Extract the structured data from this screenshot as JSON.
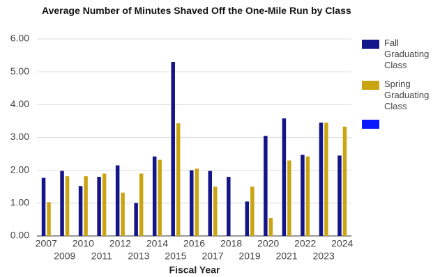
{
  "chart_data": {
    "type": "bar",
    "title": "Average Number of Minutes Shaved Off the One-Mile Run by Class",
    "x_label": "Fiscal Year",
    "categories": [
      "2007",
      "2009",
      "2010",
      "2011",
      "2012",
      "2013",
      "2014",
      "2015",
      "2016",
      "2017",
      "2018",
      "2019",
      "2020",
      "2021",
      "2022",
      "2023",
      "2024"
    ],
    "series": [
      {
        "name": "Fall Graduating Class",
        "color": "#15158a",
        "values": [
          1.77,
          1.98,
          1.52,
          1.8,
          2.15,
          1.0,
          2.42,
          5.3,
          2.0,
          1.98,
          1.8,
          1.05,
          3.05,
          3.58,
          2.47,
          3.45,
          2.45
        ]
      },
      {
        "name": "Spring Graduating Class",
        "color": "#c9a514",
        "values": [
          1.03,
          1.82,
          1.82,
          1.9,
          1.32,
          1.9,
          2.32,
          3.43,
          2.05,
          1.5,
          null,
          1.5,
          0.55,
          2.3,
          2.42,
          3.45,
          3.33
        ]
      }
    ],
    "ylim": [
      0,
      6
    ],
    "yticks": [
      {
        "value": 0,
        "label": "0.00"
      },
      {
        "value": 1,
        "label": "1.00"
      },
      {
        "value": 2,
        "label": "2.00"
      },
      {
        "value": 3,
        "label": "3.00"
      },
      {
        "value": 4,
        "label": "4.00"
      },
      {
        "value": 5,
        "label": "5.00"
      },
      {
        "value": 6,
        "label": "6.00"
      }
    ],
    "grid": true,
    "legend": "right"
  }
}
